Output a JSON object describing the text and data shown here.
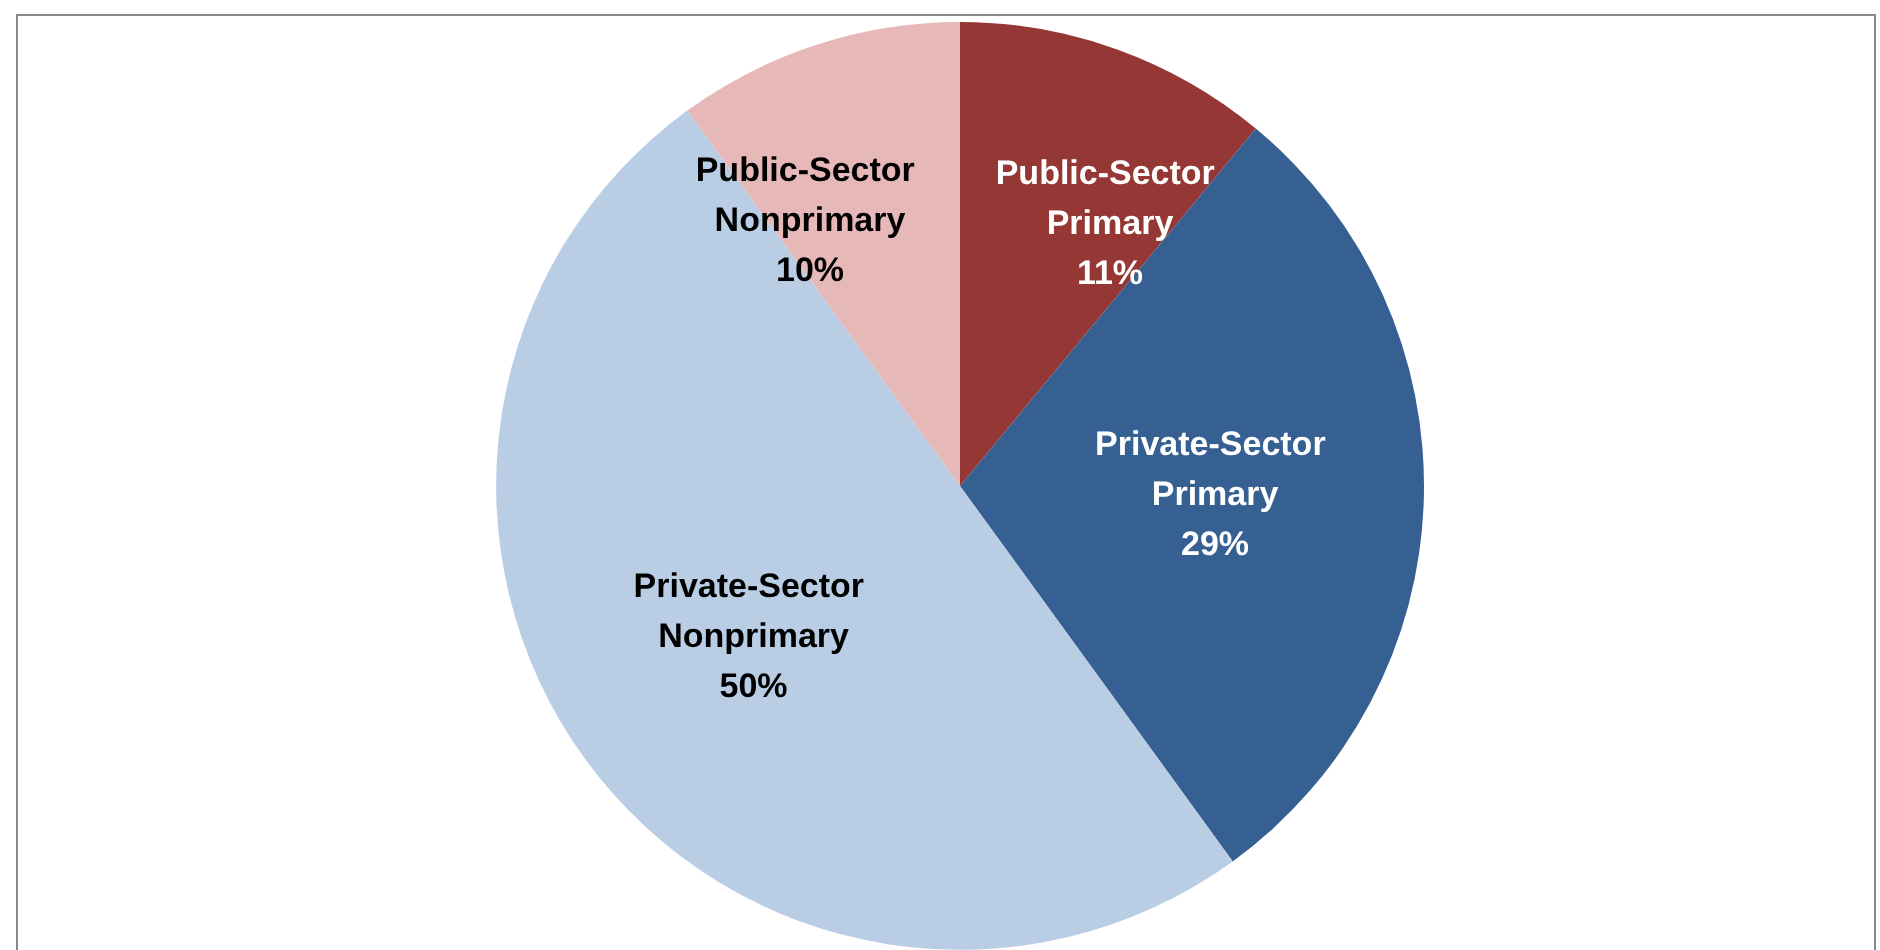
{
  "chart_data": {
    "type": "pie",
    "categories": [
      "Public-Sector Primary",
      "Private-Sector Primary",
      "Private-Sector Nonprimary",
      "Public-Sector Nonprimary"
    ],
    "values": [
      11,
      29,
      50,
      10
    ],
    "value_labels": [
      "11%",
      "29%",
      "50%",
      "10%"
    ],
    "colors": [
      "#953735",
      "#376092",
      "#b9cde5",
      "#e6b9b8"
    ],
    "legend": false
  }
}
